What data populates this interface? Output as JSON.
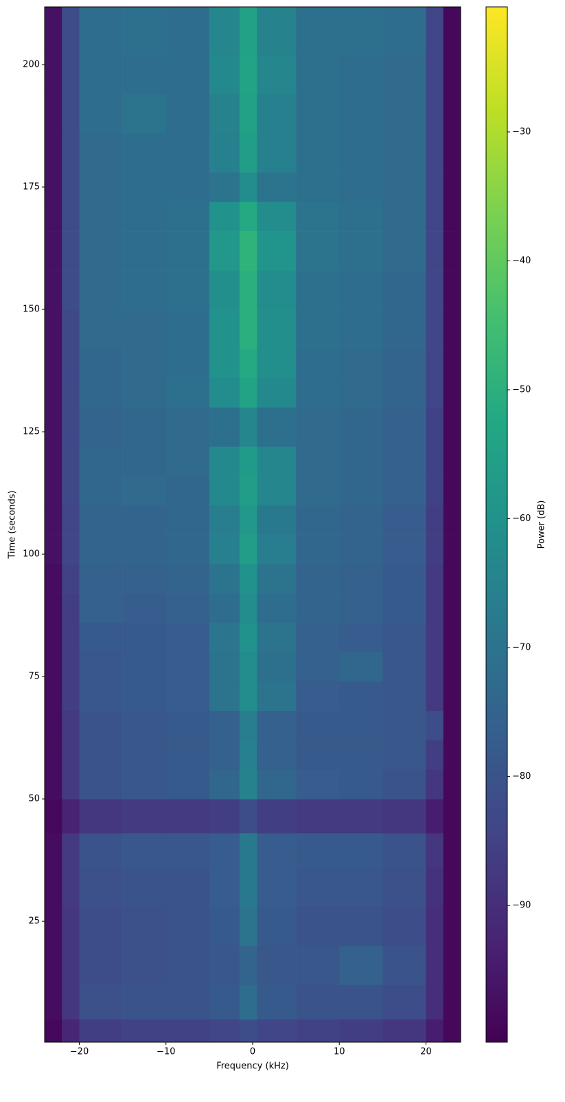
{
  "chart_data": {
    "type": "heatmap",
    "x_label": "Frequency (kHz)",
    "y_label": "Time (seconds)",
    "colorbar_label": "Power (dB)",
    "cmap": "viridis",
    "xbins": [
      -24,
      -22,
      -20,
      -15,
      -10,
      -5,
      -1.5,
      0.5,
      5,
      10,
      15,
      20,
      22,
      24
    ],
    "ybins": [
      0.3,
      5,
      12,
      20,
      28,
      36,
      43,
      50,
      56,
      62,
      68,
      74,
      80,
      86,
      92,
      98,
      104,
      110,
      116,
      122,
      130,
      136,
      142,
      150,
      158,
      166,
      172,
      178,
      186,
      194,
      202,
      211.8
    ],
    "z": [
      [
        -99,
        -92,
        -86,
        -85,
        -85,
        -84,
        -82,
        -84,
        -85,
        -86,
        -88,
        -94,
        -99
      ],
      [
        -98,
        -88,
        -81,
        -80,
        -80,
        -78,
        -72,
        -78,
        -80,
        -80,
        -82,
        -90,
        -99
      ],
      [
        -98,
        -88,
        -82,
        -81,
        -80,
        -79,
        -75,
        -79,
        -79,
        -76,
        -80,
        -90,
        -99
      ],
      [
        -98,
        -88,
        -82,
        -81,
        -80,
        -78,
        -70,
        -78,
        -80,
        -80,
        -82,
        -90,
        -99
      ],
      [
        -98,
        -87,
        -81,
        -80,
        -80,
        -77,
        -68,
        -77,
        -79,
        -79,
        -81,
        -89,
        -99
      ],
      [
        -98,
        -87,
        -80,
        -79,
        -79,
        -77,
        -68,
        -77,
        -78,
        -78,
        -80,
        -88,
        -99
      ],
      [
        -99,
        -93,
        -88,
        -87,
        -87,
        -86,
        -82,
        -86,
        -87,
        -87,
        -88,
        -94,
        -99
      ],
      [
        -98,
        -87,
        -80,
        -79,
        -78,
        -74,
        -65,
        -74,
        -77,
        -78,
        -80,
        -88,
        -99
      ],
      [
        -98,
        -87,
        -80,
        -79,
        -78,
        -76,
        -66,
        -76,
        -78,
        -78,
        -79,
        -86,
        -99
      ],
      [
        -98,
        -87,
        -80,
        -79,
        -78,
        -76,
        -67,
        -76,
        -78,
        -78,
        -79,
        -82,
        -99
      ],
      [
        -98,
        -86,
        -79,
        -78,
        -77,
        -70,
        -62,
        -70,
        -77,
        -78,
        -79,
        -87,
        -99
      ],
      [
        -98,
        -86,
        -79,
        -78,
        -77,
        -70,
        -62,
        -71,
        -76,
        -74,
        -79,
        -87,
        -99
      ],
      [
        -98,
        -86,
        -78,
        -78,
        -77,
        -69,
        -60,
        -70,
        -76,
        -77,
        -79,
        -87,
        -99
      ],
      [
        -98,
        -86,
        -76,
        -77,
        -76,
        -72,
        -62,
        -72,
        -75,
        -76,
        -78,
        -87,
        -99
      ],
      [
        -98,
        -85,
        -76,
        -76,
        -75,
        -70,
        -60,
        -70,
        -75,
        -76,
        -78,
        -87,
        -99
      ],
      [
        -97,
        -84,
        -75,
        -75,
        -74,
        -66,
        -56,
        -67,
        -74,
        -75,
        -77,
        -86,
        -99
      ],
      [
        -97,
        -84,
        -75,
        -75,
        -74,
        -67,
        -58,
        -68,
        -74,
        -75,
        -77,
        -86,
        -99
      ],
      [
        -97,
        -83,
        -74,
        -73,
        -74,
        -63,
        -56,
        -64,
        -73,
        -74,
        -76,
        -85,
        -99
      ],
      [
        -97,
        -83,
        -74,
        -74,
        -73,
        -63,
        -57,
        -64,
        -73,
        -74,
        -76,
        -85,
        -99
      ],
      [
        -97,
        -83,
        -75,
        -74,
        -73,
        -71,
        -64,
        -71,
        -73,
        -74,
        -76,
        -85,
        -99
      ],
      [
        -97,
        -83,
        -74,
        -73,
        -71,
        -62,
        -54,
        -63,
        -72,
        -73,
        -75,
        -84,
        -99
      ],
      [
        -97,
        -83,
        -74,
        -73,
        -72,
        -60,
        -52,
        -61,
        -72,
        -73,
        -75,
        -84,
        -99
      ],
      [
        -97,
        -83,
        -73,
        -73,
        -72,
        -60,
        -50,
        -61,
        -71,
        -72,
        -74,
        -84,
        -99
      ],
      [
        -97,
        -82,
        -73,
        -72,
        -71,
        -61,
        -50,
        -62,
        -71,
        -72,
        -74,
        -84,
        -99
      ],
      [
        -97,
        -82,
        -73,
        -72,
        -71,
        -58,
        -49,
        -59,
        -70,
        -71,
        -73,
        -84,
        -99
      ],
      [
        -97,
        -82,
        -73,
        -72,
        -71,
        -60,
        -52,
        -62,
        -70,
        -71,
        -73,
        -84,
        -99
      ],
      [
        -97,
        -82,
        -73,
        -72,
        -72,
        -70,
        -62,
        -70,
        -71,
        -72,
        -73,
        -84,
        -99
      ],
      [
        -97,
        -82,
        -73,
        -72,
        -72,
        -66,
        -56,
        -66,
        -71,
        -72,
        -73,
        -84,
        -99
      ],
      [
        -97,
        -82,
        -72,
        -70,
        -72,
        -65,
        -55,
        -66,
        -71,
        -72,
        -73,
        -84,
        -99
      ],
      [
        -97,
        -82,
        -72,
        -72,
        -72,
        -63,
        -54,
        -64,
        -71,
        -72,
        -73,
        -84,
        -99
      ],
      [
        -97,
        -82,
        -72,
        -71,
        -72,
        -64,
        -55,
        -65,
        -71,
        -71,
        -72,
        -84,
        -99
      ]
    ],
    "xlim": [
      -24,
      24
    ],
    "ylim": [
      0.3,
      211.8
    ],
    "xticks": [
      {
        "value": -20,
        "label": "−20"
      },
      {
        "value": -10,
        "label": "−10"
      },
      0,
      10,
      20
    ],
    "yticks": [
      25,
      50,
      75,
      100,
      125,
      150,
      175,
      200
    ],
    "clim": [
      -100.6,
      -20.3
    ],
    "cticks": [
      {
        "value": -90,
        "label": "−90"
      },
      {
        "value": -80,
        "label": "−80"
      },
      {
        "value": -70,
        "label": "−70"
      },
      {
        "value": -60,
        "label": "−60"
      },
      {
        "value": -50,
        "label": "−50"
      },
      {
        "value": -40,
        "label": "−40"
      },
      {
        "value": -30,
        "label": "−30"
      }
    ]
  }
}
